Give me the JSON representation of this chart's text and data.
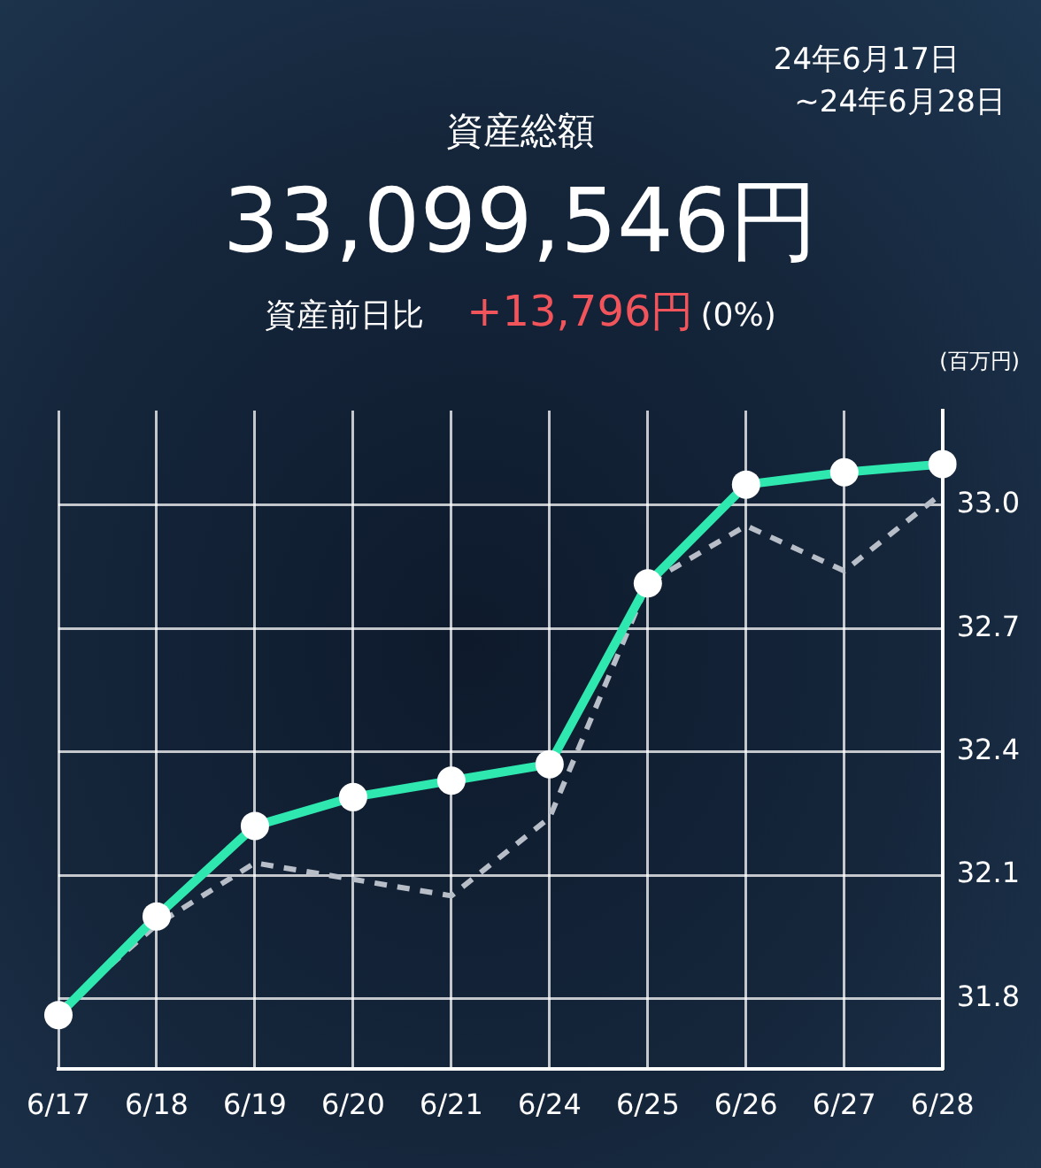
{
  "chart_data": {
    "type": "line",
    "title": "資産総額",
    "subtitle": "33,099,546円",
    "ylabel": "(百万円)",
    "annotations": [
      "24年6月17日",
      "~24年6月28日",
      "資産前日比",
      "+13,796円",
      "(0%)"
    ],
    "categories": [
      "6/17",
      "6/18",
      "6/19",
      "6/20",
      "6/21",
      "6/24",
      "6/25",
      "6/26",
      "6/27",
      "6/28"
    ],
    "series": [
      {
        "color": "#2ee8b0",
        "marker": "circle",
        "line_style": "solid",
        "values": [
          31.76,
          32.0,
          32.22,
          32.29,
          32.33,
          32.37,
          32.81,
          33.05,
          33.08,
          33.1
        ]
      },
      {
        "color": "#b8bec8",
        "marker": "none",
        "line_style": "dashed",
        "values": [
          31.77,
          31.98,
          32.13,
          32.09,
          32.05,
          32.24,
          32.81,
          32.95,
          32.84,
          33.03
        ]
      }
    ],
    "ylim": [
      31.63,
      33.23
    ],
    "yticks": [
      {
        "value": 31.8,
        "label": "31.8"
      },
      {
        "value": 32.1,
        "label": "32.1"
      },
      {
        "value": 32.4,
        "label": "32.4"
      },
      {
        "value": 32.7,
        "label": "32.7"
      },
      {
        "value": 33.0,
        "label": "33.0"
      }
    ],
    "grid": true,
    "legend": false
  }
}
